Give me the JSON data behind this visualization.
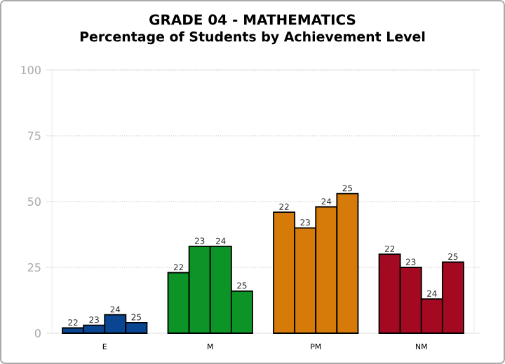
{
  "chart_data": {
    "type": "bar",
    "title": "GRADE 04 - MATHEMATICS",
    "subtitle": "Percentage of Students by Achievement Level",
    "categories": [
      "E",
      "M",
      "PM",
      "NM"
    ],
    "series": [
      {
        "name": "22",
        "colors": [
          "#0a4591",
          "#0c9426",
          "#d67b09",
          "#a30a22"
        ],
        "values": [
          2,
          23,
          46,
          30
        ]
      },
      {
        "name": "23",
        "colors": [
          "#0a4591",
          "#0c9426",
          "#d67b09",
          "#a30a22"
        ],
        "values": [
          3,
          33,
          40,
          25
        ]
      },
      {
        "name": "24",
        "colors": [
          "#0a4591",
          "#0c9426",
          "#d67b09",
          "#a30a22"
        ],
        "values": [
          7,
          33,
          48,
          13
        ]
      },
      {
        "name": "25",
        "colors": [
          "#0a4591",
          "#0c9426",
          "#d67b09",
          "#a30a22"
        ],
        "values": [
          4,
          16,
          53,
          27
        ]
      }
    ],
    "ylim": [
      0,
      100
    ],
    "yticks": [
      0,
      25,
      50,
      75,
      100
    ],
    "grid": "y"
  }
}
